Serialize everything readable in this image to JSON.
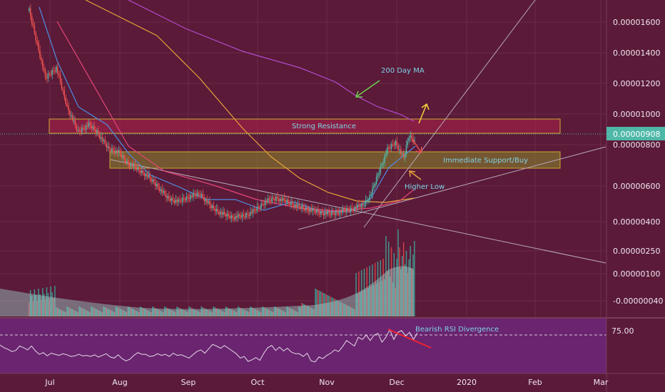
{
  "chart_data": {
    "type": "candlestick",
    "price_axis": {
      "ticks": [
        "0.00001600",
        "0.00001400",
        "0.00001200",
        "0.00001000",
        "0.00000800",
        "0.00000600",
        "0.00000400",
        "0.00000250",
        "0.00000100",
        "-0.00000040"
      ],
      "current_price": "0.00000908"
    },
    "x_axis": {
      "ticks": [
        "Jul",
        "Aug",
        "Sep",
        "Oct",
        "Nov",
        "Dec",
        "2020",
        "Feb",
        "Mar"
      ]
    },
    "rsi": {
      "level_label": "75.00",
      "values": [
        52,
        47,
        44,
        40,
        42,
        50,
        47,
        43,
        50,
        41,
        35,
        38,
        32,
        37,
        35,
        33,
        36,
        34,
        31,
        32,
        35,
        32,
        33,
        31,
        34,
        30,
        33,
        36,
        30,
        28,
        34,
        27,
        23,
        26,
        33,
        38,
        35,
        35,
        31,
        32,
        36,
        33,
        35,
        31,
        37,
        33,
        34,
        31,
        28,
        34,
        40,
        43,
        37,
        45,
        53,
        50,
        46,
        51,
        46,
        41,
        36,
        28,
        31,
        22,
        25,
        29,
        24,
        37,
        47,
        51,
        42,
        48,
        41,
        46,
        39,
        36,
        36,
        31,
        37,
        23,
        21,
        30,
        27,
        33,
        37,
        43,
        40,
        49,
        60,
        55,
        50,
        66,
        62,
        70,
        60,
        70,
        73,
        57,
        66,
        80,
        62,
        75,
        78,
        68,
        75,
        62,
        74
      ]
    },
    "annotations": {
      "ma_label": "200 Day MA",
      "resistance_label": "Strong Resistance",
      "support_label": "Immediate Support/Buy",
      "higher_low_label": "Higher Low",
      "divergence_label": "Bearish RSI Divergence"
    },
    "colors": {
      "background": "#5a1a38",
      "bullish": "#4fb8a8",
      "bearish": "#f0524f",
      "ma_purple": "#b44dd0",
      "ma_orange": "#e8a33a",
      "ma_pink": "#e7467a",
      "ma_blue": "#4f8de0",
      "resistance_zone": "#c0244f",
      "support_zone": "#8c8a2c",
      "rsi_pane": "#6a2470",
      "annotation_text": "#7fd3e8"
    },
    "grid": true
  }
}
